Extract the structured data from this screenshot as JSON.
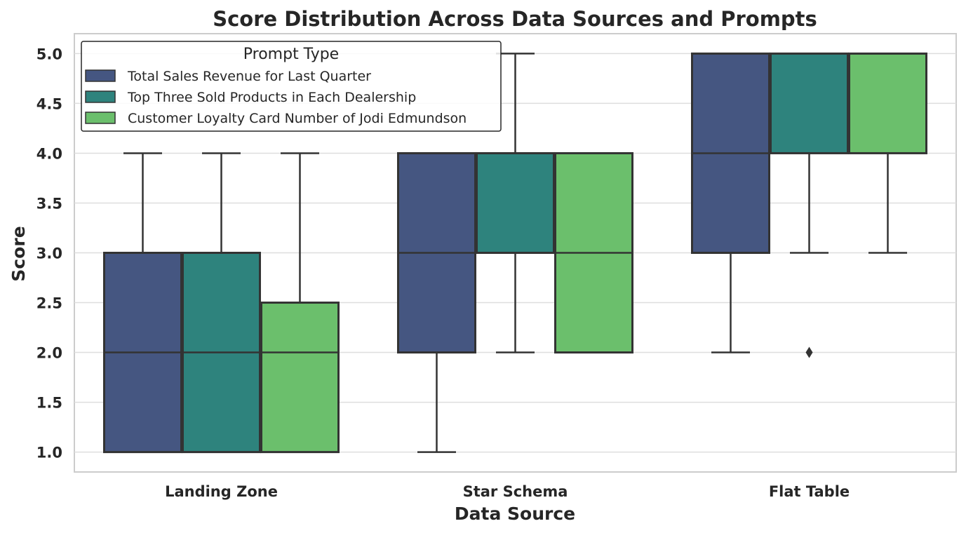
{
  "chart_data": {
    "type": "box",
    "title": "Score Distribution Across Data Sources and Prompts",
    "xlabel": "Data Source",
    "ylabel": "Score",
    "ylim": [
      0.8,
      5.2
    ],
    "yticks": [
      "1.0",
      "1.5",
      "2.0",
      "2.5",
      "3.0",
      "3.5",
      "4.0",
      "4.5",
      "5.0"
    ],
    "grid": true,
    "legend": {
      "title": "Prompt Type",
      "placement": "top-left"
    },
    "categories": [
      "Landing Zone",
      "Star Schema",
      "Flat Table"
    ],
    "series": [
      {
        "name": "Total Sales Revenue for Last Quarter",
        "color": "#455681",
        "boxes": [
          {
            "whislo": 1.0,
            "q1": 1.0,
            "med": 2.0,
            "q3": 3.0,
            "whishi": 4.0,
            "fliers": []
          },
          {
            "whislo": 1.0,
            "q1": 2.0,
            "med": 3.0,
            "q3": 4.0,
            "whishi": 4.0,
            "fliers": []
          },
          {
            "whislo": 2.0,
            "q1": 3.0,
            "med": 4.0,
            "q3": 5.0,
            "whishi": 5.0,
            "fliers": []
          }
        ]
      },
      {
        "name": "Top Three Sold Products in Each Dealership",
        "color": "#2e837d",
        "boxes": [
          {
            "whislo": 1.0,
            "q1": 1.0,
            "med": 2.0,
            "q3": 3.0,
            "whishi": 4.0,
            "fliers": []
          },
          {
            "whislo": 2.0,
            "q1": 3.0,
            "med": 4.0,
            "q3": 4.0,
            "whishi": 5.0,
            "fliers": []
          },
          {
            "whislo": 3.0,
            "q1": 4.0,
            "med": 5.0,
            "q3": 5.0,
            "whishi": 5.0,
            "fliers": [
              2.0
            ]
          }
        ]
      },
      {
        "name": "Customer Loyalty Card Number of Jodi Edmundson",
        "color": "#6bbf6c",
        "boxes": [
          {
            "whislo": 1.0,
            "q1": 1.0,
            "med": 2.0,
            "q3": 2.5,
            "whishi": 4.0,
            "fliers": []
          },
          {
            "whislo": 2.0,
            "q1": 2.0,
            "med": 3.0,
            "q3": 4.0,
            "whishi": 4.0,
            "fliers": []
          },
          {
            "whislo": 3.0,
            "q1": 4.0,
            "med": 5.0,
            "q3": 5.0,
            "whishi": 5.0,
            "fliers": []
          }
        ]
      }
    ]
  }
}
